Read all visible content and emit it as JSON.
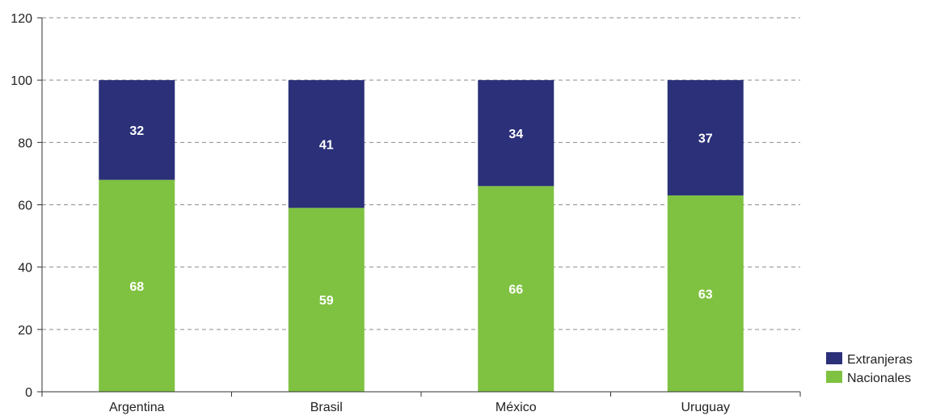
{
  "chart_data": {
    "type": "bar",
    "stacked": true,
    "categories": [
      "Argentina",
      "Brasil",
      "México",
      "Uruguay"
    ],
    "series": [
      {
        "name": "Nacionales",
        "values": [
          68,
          59,
          66,
          63
        ],
        "color": "#7fc241"
      },
      {
        "name": "Extranjeras",
        "values": [
          32,
          41,
          34,
          37
        ],
        "color": "#2b3079"
      }
    ],
    "title": "",
    "xlabel": "",
    "ylabel": "",
    "ylim": [
      0,
      120
    ],
    "yticks": [
      0,
      20,
      40,
      60,
      80,
      100,
      120
    ],
    "grid": true,
    "legend_position": "bottom-right",
    "legend_order": [
      "Extranjeras",
      "Nacionales"
    ]
  }
}
